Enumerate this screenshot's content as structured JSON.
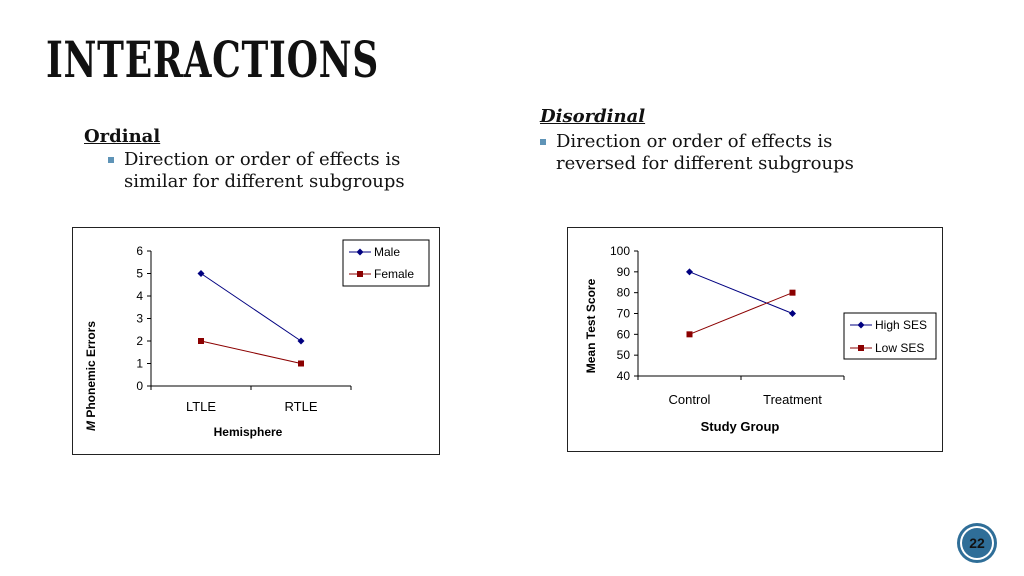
{
  "slide": {
    "title": "INTERACTIONS",
    "page_number": "22"
  },
  "ordinal": {
    "heading": "Ordinal",
    "bullet_line1": "Direction or order of effects is",
    "bullet_line2": "similar for different subgroups"
  },
  "disordinal": {
    "heading": "Disordinal",
    "bullet_line1": "Direction or order of effects is",
    "bullet_line2": "reversed for different subgroups"
  },
  "chart_data": [
    {
      "type": "line",
      "title": "",
      "xlabel": "Hemisphere",
      "ylabel_italic": "M",
      "ylabel": "Phonemic Errors",
      "categories": [
        "LTLE",
        "RTLE"
      ],
      "ylim": [
        0,
        6
      ],
      "yticks": [
        "0",
        "1",
        "2",
        "3",
        "4",
        "5",
        "6"
      ],
      "legend_position": "top-right",
      "series": [
        {
          "name": "Male",
          "values": [
            5,
            2
          ],
          "color": "#000080",
          "marker": "diamond"
        },
        {
          "name": "Female",
          "values": [
            2,
            1
          ],
          "color": "#8b0000",
          "marker": "square"
        }
      ]
    },
    {
      "type": "line",
      "title": "",
      "xlabel": "Study Group",
      "ylabel": "Mean Test Score",
      "categories": [
        "Control",
        "Treatment"
      ],
      "ylim": [
        40,
        100
      ],
      "yticks": [
        "40",
        "50",
        "60",
        "70",
        "80",
        "90",
        "100"
      ],
      "legend_position": "right",
      "series": [
        {
          "name": "High SES",
          "values": [
            90,
            70
          ],
          "color": "#000080",
          "marker": "diamond"
        },
        {
          "name": "Low SES",
          "values": [
            60,
            80
          ],
          "color": "#8b0000",
          "marker": "square"
        }
      ]
    }
  ]
}
